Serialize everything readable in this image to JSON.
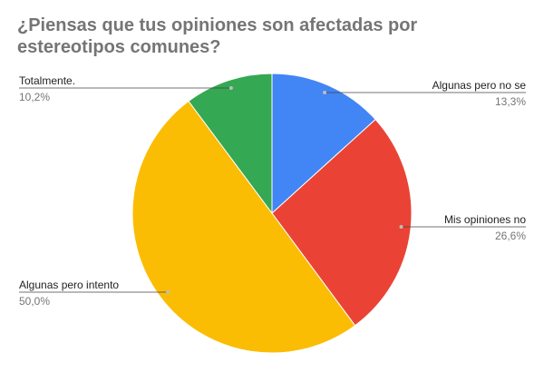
{
  "chart_data": {
    "type": "pie",
    "title": "¿Piensas que tus opiniones son afectadas por estereotipos comunes?",
    "slices": [
      {
        "label": "Algunas pero no se",
        "value": 13.3,
        "display": "13,3%",
        "color": "#4285F4"
      },
      {
        "label": "Mis opiniones no",
        "value": 26.6,
        "display": "26,6%",
        "color": "#EA4335"
      },
      {
        "label": "Algunas pero intento",
        "value": 50.0,
        "display": "50,0%",
        "color": "#FBBC04"
      },
      {
        "label": "Totalmente.",
        "value": 10.2,
        "display": "10,2%",
        "color": "#34A853"
      }
    ]
  }
}
